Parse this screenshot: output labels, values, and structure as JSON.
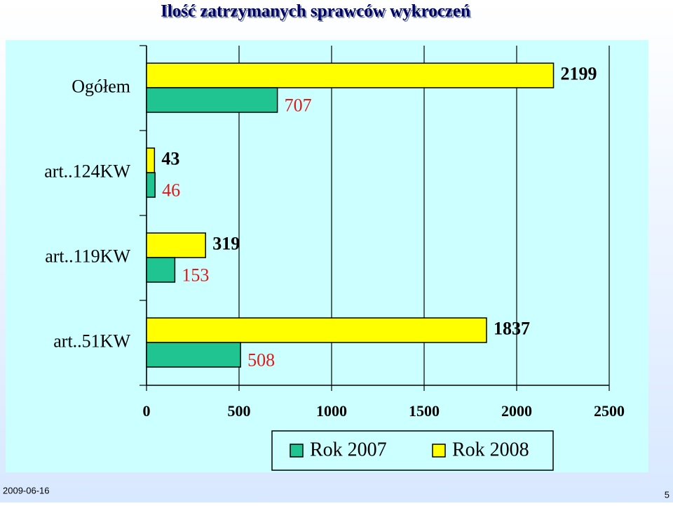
{
  "chart_data": {
    "type": "hbar",
    "title": "Ilość zatrzymanych sprawców wykroczeń",
    "categories": [
      "Ogółem",
      "art..124KW",
      "art..119KW",
      "art..51KW"
    ],
    "series": [
      {
        "name": "Rok 2007",
        "color": "#1fc491",
        "label_color": "#e01818",
        "values": [
          707,
          46,
          153,
          508
        ]
      },
      {
        "name": "Rok 2008",
        "color": "#ffff00",
        "label_color": "#000000",
        "values": [
          2199,
          43,
          319,
          1837
        ]
      }
    ],
    "xlim": [
      0,
      2500
    ],
    "xticks": [
      0,
      500,
      1000,
      1500,
      2000,
      2500
    ],
    "grid": true,
    "legend": "bottom"
  },
  "footer": {
    "date": "2009-06-16",
    "page": "5"
  }
}
